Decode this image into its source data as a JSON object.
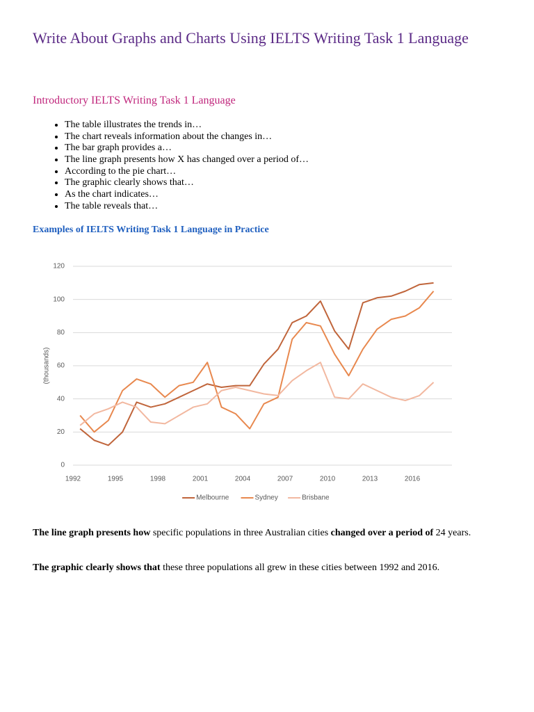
{
  "header": {
    "title": "Write About Graphs and Charts Using IELTS Writing Task 1 Language"
  },
  "intro": {
    "heading": "Introductory IELTS Writing Task 1 Language",
    "bullets": [
      "The table illustrates the trends in…",
      "The chart reveals information about the changes in…",
      "The bar graph provides a…",
      "The line graph presents how X has changed over a period of…",
      "According to the pie chart…",
      "The graphic clearly shows that…",
      "As the chart indicates…",
      "The table reveals that…"
    ]
  },
  "examples": {
    "heading": "Examples of IELTS Writing Task 1 Language in Practice"
  },
  "chart_data": {
    "type": "line",
    "y_label": "(thousands)",
    "x": [
      1992.5,
      1993.5,
      1994.5,
      1995.5,
      1996.5,
      1997.5,
      1998.5,
      1999.5,
      2000.5,
      2001.5,
      2002.5,
      2003.5,
      2004.5,
      2005.5,
      2006.5,
      2007.5,
      2008.5,
      2009.5,
      2010.5,
      2011.5,
      2012.5,
      2013.5,
      2014.5,
      2015.5,
      2016.5,
      2017.5
    ],
    "series": [
      {
        "name": "Melbourne",
        "color": "#c0653b",
        "values": [
          22,
          15,
          12,
          20,
          38,
          35,
          37,
          41,
          45,
          49,
          47,
          48,
          48,
          61,
          70,
          86,
          90,
          99,
          81,
          70,
          98,
          101,
          102,
          105,
          109,
          110
        ]
      },
      {
        "name": "Sydney",
        "color": "#e8884e",
        "values": [
          30,
          20,
          27,
          45,
          52,
          49,
          41,
          48,
          50,
          62,
          35,
          31,
          22,
          37,
          41,
          76,
          86,
          84,
          67,
          54,
          70,
          82,
          88,
          90,
          95,
          105
        ]
      },
      {
        "name": "Brisbane",
        "color": "#f2b8a0",
        "values": [
          24,
          31,
          34,
          38,
          35,
          26,
          25,
          30,
          35,
          37,
          45,
          47,
          45,
          43,
          42,
          51,
          57,
          62,
          41,
          40,
          49,
          45,
          41,
          39,
          42,
          50
        ]
      }
    ],
    "xlim": [
      1992,
      2018.8
    ],
    "xticks": [
      1992,
      1995,
      1998,
      2001,
      2004,
      2007,
      2010,
      2013,
      2016
    ],
    "ylim": [
      0,
      120
    ],
    "yticks": [
      0,
      20,
      40,
      60,
      80,
      100,
      120
    ],
    "grid": true,
    "legend": "bottom"
  },
  "paragraphs": [
    {
      "segments": [
        {
          "text": "The line graph presents how",
          "bold": true
        },
        {
          "text": " specific populations in three Australian cities ",
          "bold": false
        },
        {
          "text": "changed over a period of",
          "bold": true
        },
        {
          "text": " 24 years.",
          "bold": false
        }
      ]
    },
    {
      "segments": [
        {
          "text": "The graphic clearly shows that",
          "bold": true
        },
        {
          "text": " these three populations all grew in these cities between 1992 and 2016.",
          "bold": false
        }
      ]
    }
  ]
}
